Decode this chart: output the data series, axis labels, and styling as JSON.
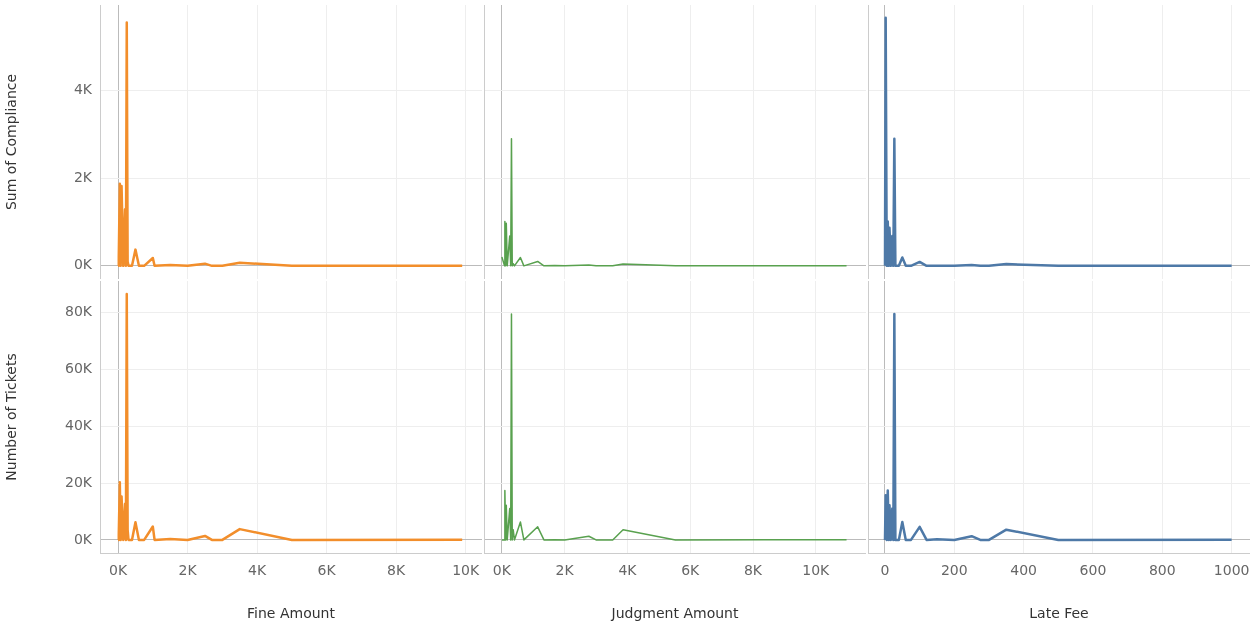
{
  "chart_data": [
    {
      "type": "line",
      "ylabel": "Sum of Compliance",
      "tick_labels": "y",
      "grid": true,
      "marker": "none",
      "line_style": "solid",
      "xlim": [
        -520,
        10470
      ],
      "xticks": [
        {
          "value": 0,
          "label": null
        },
        {
          "value": 2000,
          "label": null
        },
        {
          "value": 4000,
          "label": null
        },
        {
          "value": 6000,
          "label": null
        },
        {
          "value": 8000,
          "label": null
        },
        {
          "value": 10000,
          "label": null
        }
      ],
      "ylim": [
        -300,
        5950
      ],
      "yticks": [
        {
          "value": 0,
          "label": "0K"
        },
        {
          "value": 2000,
          "label": "2K"
        },
        {
          "value": 4000,
          "label": "4K"
        }
      ],
      "series": [
        {
          "color": "#f28e2b",
          "x": [
            0,
            20,
            50,
            75,
            100,
            150,
            200,
            225,
            250,
            275,
            300,
            400,
            500,
            600,
            750,
            1000,
            1050,
            1500,
            2000,
            2500,
            2700,
            3000,
            3500,
            5000,
            9900
          ],
          "values": [
            0,
            200,
            1870,
            0,
            1820,
            0,
            1290,
            0,
            5550,
            100,
            0,
            0,
            370,
            0,
            0,
            180,
            0,
            20,
            0,
            50,
            0,
            0,
            70,
            0,
            0
          ]
        }
      ]
    },
    {
      "type": "line",
      "tick_labels": false,
      "grid": true,
      "marker": "none",
      "line_style": "solid",
      "xlim": [
        -570,
        11600
      ],
      "xticks": [
        {
          "value": 0,
          "label": null
        },
        {
          "value": 2000,
          "label": null
        },
        {
          "value": 4000,
          "label": null
        },
        {
          "value": 6000,
          "label": null
        },
        {
          "value": 8000,
          "label": null
        },
        {
          "value": 10000,
          "label": null
        }
      ],
      "ylim": [
        -300,
        5950
      ],
      "yticks": [
        {
          "value": 0,
          "label": null
        },
        {
          "value": 2000,
          "label": null
        },
        {
          "value": 4000,
          "label": null
        }
      ],
      "series": [
        {
          "color": "#59a14f",
          "x": [
            0,
            85,
            95,
            120,
            140,
            170,
            250,
            280,
            305,
            330,
            360,
            400,
            590,
            700,
            1140,
            1340,
            1680,
            2000,
            2770,
            3000,
            3530,
            3860,
            5530,
            10980
          ],
          "values": [
            200,
            0,
            1010,
            0,
            970,
            0,
            680,
            0,
            2900,
            0,
            50,
            0,
            190,
            0,
            100,
            0,
            10,
            0,
            20,
            0,
            0,
            40,
            0,
            0
          ]
        }
      ]
    },
    {
      "type": "line",
      "tick_labels": false,
      "grid": true,
      "marker": "none",
      "line_style": "solid",
      "xlim": [
        -49,
        1053
      ],
      "xticks": [
        {
          "value": 0,
          "label": null
        },
        {
          "value": 200,
          "label": null
        },
        {
          "value": 400,
          "label": null
        },
        {
          "value": 600,
          "label": null
        },
        {
          "value": 800,
          "label": null
        },
        {
          "value": 1000,
          "label": null
        }
      ],
      "ylim": [
        -300,
        5950
      ],
      "yticks": [
        {
          "value": 0,
          "label": null
        },
        {
          "value": 2000,
          "label": null
        },
        {
          "value": 4000,
          "label": null
        }
      ],
      "series": [
        {
          "color": "#4e79a7",
          "x": [
            0,
            2,
            5,
            8,
            11,
            13,
            17,
            21,
            24,
            27,
            30,
            40,
            50,
            60,
            75,
            100,
            120,
            150,
            200,
            250,
            275,
            300,
            350,
            500,
            1000
          ],
          "values": [
            0,
            5660,
            0,
            1010,
            0,
            870,
            0,
            680,
            0,
            2900,
            0,
            0,
            190,
            0,
            0,
            90,
            0,
            0,
            0,
            20,
            0,
            0,
            40,
            0,
            0
          ]
        }
      ]
    },
    {
      "type": "line",
      "ylabel": "Number of Tickets",
      "xlabel": "Fine Amount",
      "grid": true,
      "marker": "none",
      "line_style": "solid",
      "xlim": [
        -520,
        10470
      ],
      "xticks": [
        {
          "value": 0,
          "label": "0K"
        },
        {
          "value": 2000,
          "label": "2K"
        },
        {
          "value": 4000,
          "label": "4K"
        },
        {
          "value": 6000,
          "label": "6K"
        },
        {
          "value": 8000,
          "label": "8K"
        },
        {
          "value": 10000,
          "label": "10K"
        }
      ],
      "ylim": [
        -4600,
        91000
      ],
      "yticks": [
        {
          "value": 0,
          "label": "0K"
        },
        {
          "value": 20000,
          "label": "20K"
        },
        {
          "value": 40000,
          "label": "40K"
        },
        {
          "value": 60000,
          "label": "60K"
        },
        {
          "value": 80000,
          "label": "80K"
        }
      ],
      "series": [
        {
          "color": "#f28e2b",
          "x": [
            0,
            20,
            50,
            75,
            100,
            150,
            200,
            225,
            250,
            275,
            300,
            400,
            500,
            600,
            750,
            1000,
            1050,
            1500,
            2000,
            2500,
            2700,
            3000,
            3500,
            5000,
            9900
          ],
          "values": [
            0,
            2000,
            20300,
            0,
            15300,
            0,
            12700,
            0,
            86400,
            3500,
            0,
            0,
            6200,
            0,
            0,
            4700,
            0,
            300,
            0,
            1400,
            0,
            0,
            3800,
            0,
            100
          ]
        }
      ]
    },
    {
      "type": "line",
      "xlabel": "Judgment Amount",
      "tick_labels": "x",
      "grid": true,
      "marker": "none",
      "line_style": "solid",
      "xlim": [
        -570,
        11600
      ],
      "xticks": [
        {
          "value": 0,
          "label": "0K"
        },
        {
          "value": 2000,
          "label": "2K"
        },
        {
          "value": 4000,
          "label": "4K"
        },
        {
          "value": 6000,
          "label": "6K"
        },
        {
          "value": 8000,
          "label": "8K"
        },
        {
          "value": 10000,
          "label": "10K"
        }
      ],
      "ylim": [
        -4600,
        91000
      ],
      "yticks": [
        {
          "value": 0,
          "label": null
        },
        {
          "value": 20000,
          "label": null
        },
        {
          "value": 40000,
          "label": null
        },
        {
          "value": 60000,
          "label": null
        },
        {
          "value": 80000,
          "label": null
        }
      ],
      "series": [
        {
          "color": "#59a14f",
          "x": [
            0,
            85,
            95,
            120,
            140,
            170,
            250,
            280,
            305,
            330,
            360,
            400,
            590,
            700,
            1140,
            1340,
            1680,
            2000,
            2770,
            3000,
            3530,
            3860,
            5530,
            10980
          ],
          "values": [
            0,
            0,
            17400,
            0,
            12200,
            0,
            11000,
            0,
            79400,
            0,
            3600,
            0,
            6300,
            0,
            4600,
            0,
            100,
            0,
            1300,
            0,
            0,
            3600,
            0,
            100
          ]
        }
      ]
    },
    {
      "type": "line",
      "xlabel": "Late Fee",
      "tick_labels": "x",
      "grid": true,
      "marker": "none",
      "line_style": "solid",
      "xlim": [
        -49,
        1053
      ],
      "xticks": [
        0,
        200,
        400,
        600,
        800,
        1000
      ],
      "ylim": [
        -4600,
        91000
      ],
      "yticks": [
        {
          "value": 0,
          "label": null
        },
        {
          "value": 20000,
          "label": null
        },
        {
          "value": 40000,
          "label": null
        },
        {
          "value": 60000,
          "label": null
        },
        {
          "value": 80000,
          "label": null
        }
      ],
      "series": [
        {
          "color": "#4e79a7",
          "x": [
            0,
            2,
            5,
            8,
            11,
            13,
            17,
            21,
            24,
            27,
            30,
            40,
            50,
            60,
            75,
            100,
            120,
            150,
            200,
            250,
            275,
            300,
            350,
            500,
            1000
          ],
          "values": [
            0,
            15700,
            0,
            17400,
            0,
            12200,
            0,
            11000,
            0,
            79400,
            0,
            0,
            6300,
            0,
            0,
            4600,
            0,
            200,
            0,
            1300,
            0,
            0,
            3600,
            0,
            100
          ]
        }
      ]
    }
  ]
}
